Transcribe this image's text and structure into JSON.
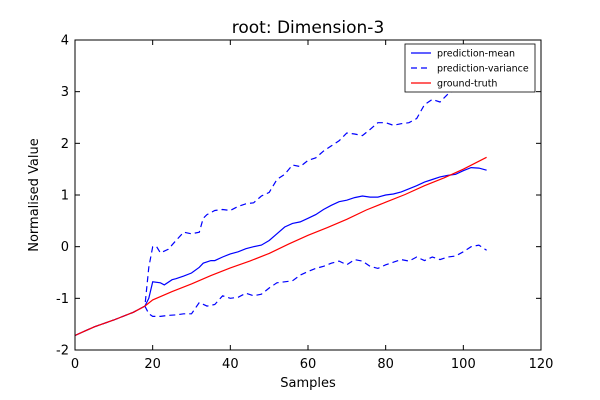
{
  "chart_data": {
    "type": "line",
    "title": "root: Dimension-3",
    "xlabel": "Samples",
    "ylabel": "Normalised Value",
    "xlim": [
      0,
      120
    ],
    "ylim": [
      -2,
      4
    ],
    "xticks": [
      0,
      20,
      40,
      60,
      80,
      100,
      120
    ],
    "yticks": [
      -2,
      -1,
      0,
      1,
      2,
      3,
      4
    ],
    "grid": false,
    "legend_position": "top-right",
    "series": [
      {
        "name": "prediction-mean",
        "color": "#0000ff",
        "style": "solid",
        "x": [
          0,
          2,
          5,
          10,
          15,
          18,
          19,
          20,
          22,
          23,
          25,
          26,
          28,
          30,
          32,
          33,
          35,
          36,
          38,
          40,
          42,
          44,
          46,
          48,
          50,
          52,
          54,
          56,
          58,
          60,
          62,
          64,
          66,
          68,
          70,
          72,
          74,
          76,
          78,
          80,
          82,
          84,
          86,
          88,
          90,
          92,
          94,
          96,
          98,
          100,
          102,
          104,
          106
        ],
        "y": [
          -1.72,
          -1.65,
          -1.55,
          -1.42,
          -1.27,
          -1.15,
          -1.0,
          -0.68,
          -0.7,
          -0.74,
          -0.64,
          -0.62,
          -0.57,
          -0.51,
          -0.4,
          -0.32,
          -0.27,
          -0.27,
          -0.2,
          -0.14,
          -0.1,
          -0.04,
          0.0,
          0.03,
          0.12,
          0.25,
          0.38,
          0.45,
          0.48,
          0.55,
          0.62,
          0.72,
          0.8,
          0.87,
          0.9,
          0.95,
          0.98,
          0.96,
          0.96,
          1.0,
          1.02,
          1.06,
          1.12,
          1.18,
          1.25,
          1.3,
          1.35,
          1.38,
          1.4,
          1.47,
          1.53,
          1.52,
          1.48
        ]
      },
      {
        "name": "prediction-variance",
        "color": "#0000ff",
        "style": "dashed",
        "segments": [
          {
            "x": [
              0,
              2,
              5,
              10,
              15,
              18,
              19,
              20,
              21,
              22,
              24,
              26,
              28,
              30,
              32,
              33,
              34,
              36,
              38,
              40,
              42,
              44,
              46,
              48,
              50,
              52,
              54,
              56,
              58,
              60,
              62,
              64,
              66,
              68,
              70,
              72,
              74,
              76,
              78,
              80,
              82,
              84,
              86,
              88,
              90,
              92,
              94,
              96,
              98
            ],
            "y": [
              -1.72,
              -1.65,
              -1.55,
              -1.42,
              -1.27,
              -1.15,
              -0.4,
              0.0,
              0.0,
              -0.12,
              -0.05,
              0.12,
              0.28,
              0.25,
              0.28,
              0.55,
              0.62,
              0.7,
              0.72,
              0.7,
              0.78,
              0.83,
              0.85,
              0.98,
              1.05,
              1.3,
              1.4,
              1.58,
              1.55,
              1.67,
              1.72,
              1.85,
              1.95,
              2.05,
              2.2,
              2.18,
              2.15,
              2.27,
              2.4,
              2.4,
              2.35,
              2.38,
              2.4,
              2.48,
              2.75,
              2.85,
              2.8,
              2.95,
              3.05
            ]
          },
          {
            "x": [
              18,
              19,
              20,
              22,
              24,
              26,
              28,
              30,
              32,
              34,
              36,
              38,
              40,
              42,
              44,
              46,
              48,
              50,
              52,
              54,
              56,
              58,
              60,
              62,
              64,
              66,
              68,
              70,
              72,
              74,
              76,
              78,
              80,
              82,
              84,
              86,
              88,
              90,
              92,
              94,
              96,
              98,
              100,
              102,
              104,
              106
            ],
            "y": [
              -1.15,
              -1.3,
              -1.35,
              -1.35,
              -1.33,
              -1.32,
              -1.3,
              -1.3,
              -1.08,
              -1.15,
              -1.12,
              -0.95,
              -1.0,
              -0.98,
              -0.9,
              -0.95,
              -0.92,
              -0.8,
              -0.7,
              -0.68,
              -0.66,
              -0.55,
              -0.48,
              -0.42,
              -0.38,
              -0.32,
              -0.28,
              -0.35,
              -0.25,
              -0.28,
              -0.38,
              -0.42,
              -0.35,
              -0.3,
              -0.25,
              -0.28,
              -0.2,
              -0.27,
              -0.2,
              -0.25,
              -0.2,
              -0.18,
              -0.1,
              0.0,
              0.03,
              -0.07
            ]
          }
        ]
      },
      {
        "name": "ground-truth",
        "color": "#ff0000",
        "style": "solid",
        "x": [
          0,
          2,
          5,
          10,
          15,
          18,
          20,
          25,
          30,
          35,
          40,
          45,
          50,
          55,
          60,
          65,
          70,
          75,
          80,
          85,
          90,
          95,
          100,
          106
        ],
        "y": [
          -1.72,
          -1.65,
          -1.55,
          -1.42,
          -1.27,
          -1.15,
          -1.03,
          -0.87,
          -0.72,
          -0.56,
          -0.41,
          -0.28,
          -0.13,
          0.05,
          0.22,
          0.37,
          0.53,
          0.71,
          0.86,
          1.01,
          1.18,
          1.33,
          1.5,
          1.73
        ]
      }
    ]
  }
}
